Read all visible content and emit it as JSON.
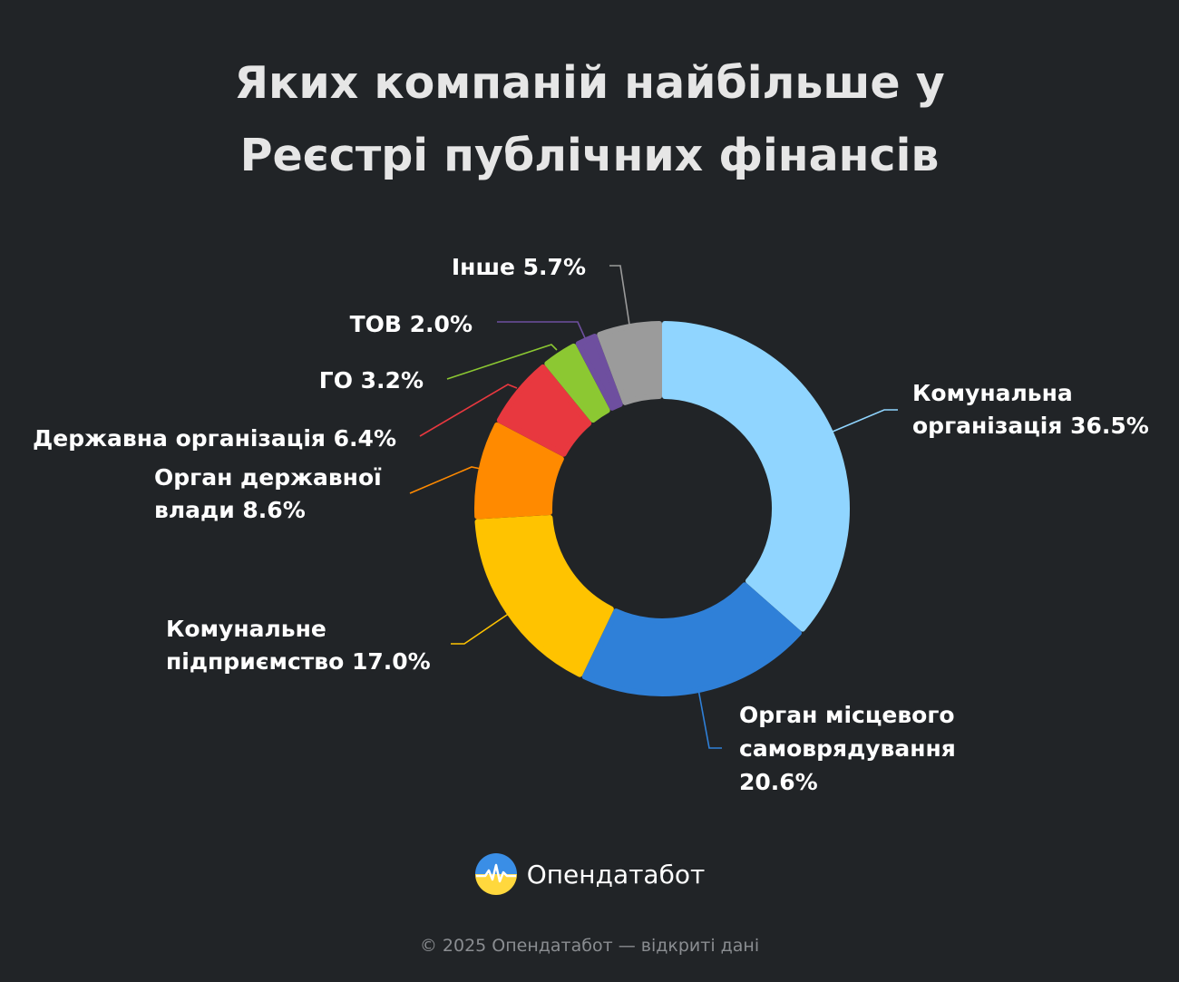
{
  "title_line1": "Яких компаній найбільше у",
  "title_line2": "Реєстрі публічних фінансів",
  "chart_data": {
    "type": "pie",
    "title": "Яких компаній найбільше у Реєстрі публічних фінансів",
    "unit": "%",
    "slices": [
      {
        "label": "Комунальна організація",
        "value": 36.5,
        "color": "#90d5ff",
        "label_lines": [
          "Комунальна",
          "організація 36.5%"
        ]
      },
      {
        "label": "Орган місцевого самоврядування",
        "value": 20.6,
        "color": "#2f80d8",
        "label_lines": [
          "Орган місцевого",
          "самоврядування",
          "20.6%"
        ]
      },
      {
        "label": "Комунальне підприємство",
        "value": 17.0,
        "color": "#ffc300",
        "label_lines": [
          "Комунальне",
          "підприємство 17.0%"
        ]
      },
      {
        "label": "Орган державної влади",
        "value": 8.6,
        "color": "#ff8a00",
        "label_lines": [
          "Орган державної",
          "влади 8.6%"
        ]
      },
      {
        "label": "Державна організація",
        "value": 6.4,
        "color": "#e8383f",
        "label_lines": [
          "Державна організація 6.4%"
        ]
      },
      {
        "label": "ГО",
        "value": 3.2,
        "color": "#8cc832",
        "label_lines": [
          "ГО 3.2%"
        ]
      },
      {
        "label": "ТОВ",
        "value": 2.0,
        "color": "#6e4f9f",
        "label_lines": [
          "ТОВ 2.0%"
        ]
      },
      {
        "label": "Інше",
        "value": 5.7,
        "color": "#9b9b9b",
        "label_lines": [
          "Інше 5.7%"
        ]
      }
    ]
  },
  "brand": {
    "name": "Опендатабот",
    "icon": "opendatabot-logo-icon"
  },
  "footer": "© 2025 Опендатабот — відкриті дані"
}
